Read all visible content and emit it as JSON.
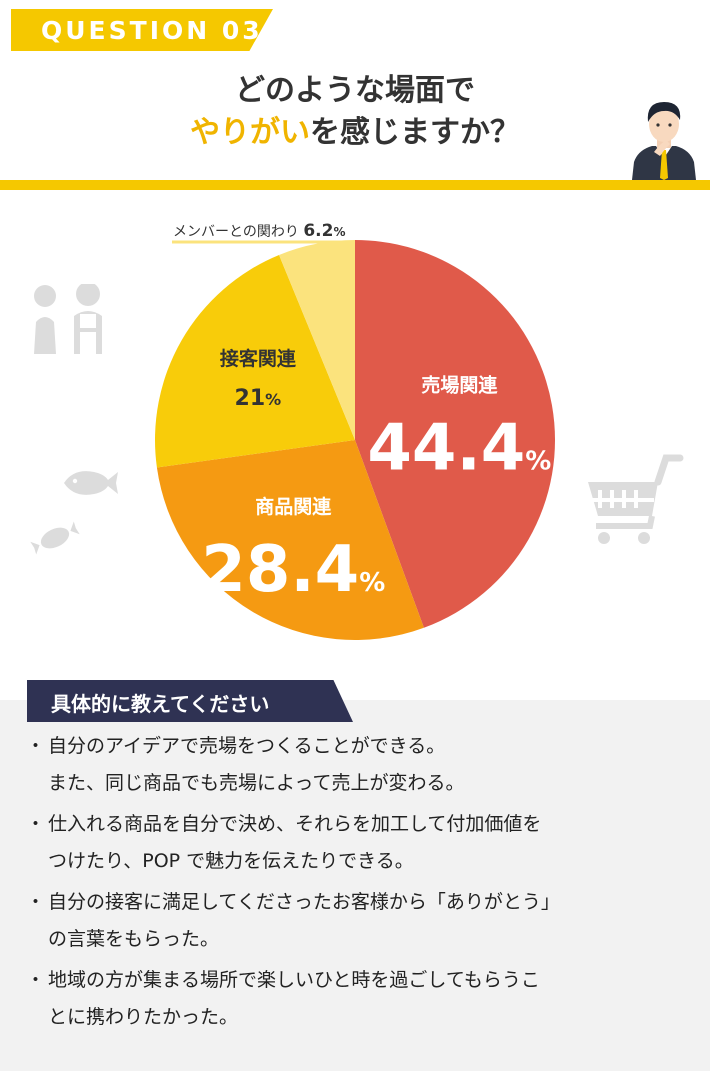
{
  "header": {
    "question_tag": "QUESTION 03",
    "title_line1": "どのような場面で",
    "title_line2_accent": "やりがい",
    "title_line2_rest": "を感じますか？"
  },
  "chart_data": {
    "type": "pie",
    "slices": [
      {
        "name": "売場関連",
        "value": 44.4,
        "value_label": "44.4",
        "color": "#e05a4a"
      },
      {
        "name": "商品関連",
        "value": 28.4,
        "value_label": "28.4",
        "color": "#f59a12"
      },
      {
        "name": "接客関連",
        "value": 21,
        "value_label": "21",
        "color": "#f8cc0a"
      },
      {
        "name": "メンバーとの関わり",
        "value": 6.2,
        "value_label": "6.2",
        "color": "#fbe37d"
      }
    ],
    "unit": "%"
  },
  "icons": [
    "people-icon",
    "fish-icon",
    "candy-icon",
    "shopping-cart-icon",
    "businessman-icon"
  ],
  "details": {
    "heading": "具体的に教えてください",
    "items": [
      {
        "lines": [
          "自分のアイデアで売場をつくることができる。",
          "また、同じ商品でも売場によって売上が変わる。"
        ]
      },
      {
        "lines": [
          "仕入れる商品を自分で決め、それらを加工して付加価値を",
          "つけたり、POP で魅力を伝えたりできる。"
        ]
      },
      {
        "lines": [
          "自分の接客に満足してくださったお客様から「ありがとう」",
          "の言葉をもらった。"
        ]
      },
      {
        "lines": [
          "地域の方が集まる場所で楽しいひと時を過ごしてもらうこ",
          "とに携わりたかった。"
        ]
      }
    ]
  }
}
